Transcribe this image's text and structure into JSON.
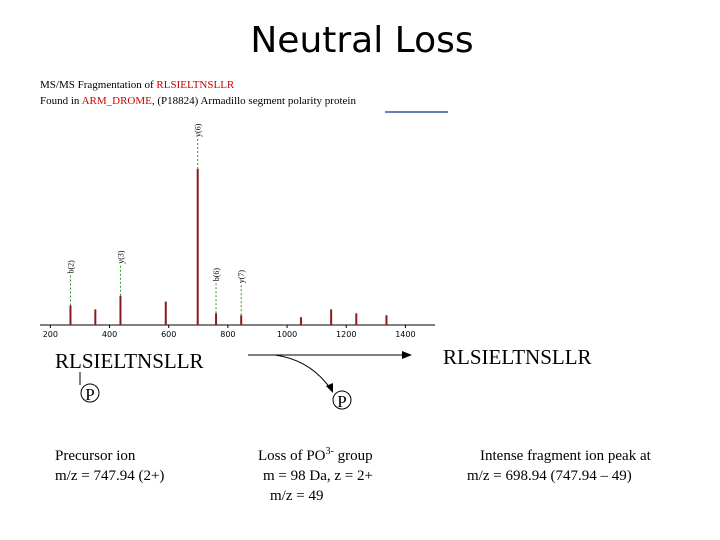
{
  "title": "Neutral Loss",
  "header": {
    "line1_prefix": "MS/MS Fragmentation of ",
    "line1_peptide": "RLSIELTNSLLR",
    "line2_prefix": "Found in ",
    "line2_protein": "ARM_DROME",
    "line2_rest": ", (P18824) Armadillo segment polarity protein"
  },
  "chart_data": {
    "type": "bar",
    "x": [
      268,
      352,
      437,
      590,
      698,
      760,
      845,
      1047,
      1149,
      1234,
      1336
    ],
    "values": [
      10,
      8,
      15,
      12,
      80,
      6,
      5,
      4,
      8,
      6,
      5
    ],
    "color": "#8b1a1a",
    "xlim": [
      165,
      1500
    ],
    "ylim": [
      0,
      100
    ],
    "xticks": [
      200,
      400,
      600,
      800,
      1000,
      1200,
      1400
    ],
    "annotations": [
      {
        "text": "b(2)",
        "x": 268
      },
      {
        "text": "y(3)",
        "x": 437
      },
      {
        "text": "y(6)",
        "x": 698
      },
      {
        "text": "b(6)",
        "x": 760
      },
      {
        "text": "y(7)",
        "x": 845
      }
    ]
  },
  "scheme": {
    "left_sequence": "RLSIELTNSLLR",
    "left_mod": "P",
    "right_sequence": "RLSIELTNSLLR",
    "lost_mod": "P"
  },
  "captions": {
    "precursor": [
      "Precursor ion",
      "m/z = 747.94 (2+)"
    ],
    "loss": {
      "prefix": "Loss of PO",
      "sup": "3-",
      "suffix": " group",
      "lines": [
        "m = 98 Da, z = 2+",
        "m/z = 49"
      ]
    },
    "fragment": [
      "Intense fragment ion peak at",
      "m/z = 698.94 (747.94 – 49)"
    ]
  }
}
